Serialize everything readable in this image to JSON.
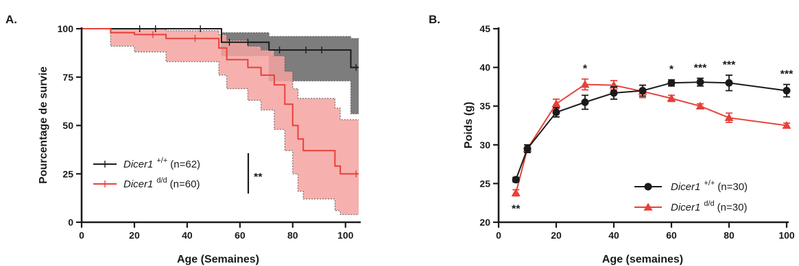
{
  "colors": {
    "black_series": "#1a1a1a",
    "red_series": "#e8403a",
    "red_band": "#f4a3a0",
    "grey_band": "#7d7d7d"
  },
  "chart_data": [
    {
      "panel": "A.",
      "type": "line",
      "subtype": "kaplan-meier survival with confidence bands",
      "xlabel": "Age (Semaines)",
      "ylabel": "Pourcentage de survie",
      "xlim": [
        0,
        105
      ],
      "ylim": [
        0,
        100
      ],
      "xticks": [
        0,
        20,
        40,
        60,
        80,
        100
      ],
      "yticks": [
        0,
        25,
        50,
        75,
        100
      ],
      "grid": false,
      "legend_position": "bottom-left",
      "significance": "**",
      "series": [
        {
          "gene": "Dicer1",
          "genotype": "+/+",
          "n_label": "(n=62)",
          "color": "#1a1a1a",
          "steps": [
            [
              0,
              100
            ],
            [
              53,
              100
            ],
            [
              53,
              93
            ],
            [
              71,
              93
            ],
            [
              71,
              89
            ],
            [
              102,
              89
            ],
            [
              102,
              80
            ],
            [
              105,
              80
            ]
          ],
          "ci_upper": [
            [
              0,
              100
            ],
            [
              53,
              100
            ],
            [
              53,
              98
            ],
            [
              71,
              98
            ],
            [
              71,
              96
            ],
            [
              102,
              96
            ],
            [
              102,
              95
            ],
            [
              105,
              95
            ]
          ],
          "ci_lower": [
            [
              0,
              100
            ],
            [
              53,
              100
            ],
            [
              53,
              86
            ],
            [
              71,
              86
            ],
            [
              71,
              73
            ],
            [
              102,
              73
            ],
            [
              102,
              56
            ],
            [
              105,
              56
            ]
          ],
          "censor_ticks": [
            [
              22,
              100
            ],
            [
              28,
              100
            ],
            [
              45,
              100
            ],
            [
              56,
              93
            ],
            [
              63,
              93
            ],
            [
              75,
              89
            ],
            [
              85,
              89
            ],
            [
              91,
              89
            ],
            [
              104,
              80
            ]
          ]
        },
        {
          "gene": "Dicer1",
          "genotype": "d/d",
          "n_label": "(n=60)",
          "color": "#e8403a",
          "steps": [
            [
              0,
              100
            ],
            [
              11,
              100
            ],
            [
              11,
              98
            ],
            [
              20,
              98
            ],
            [
              20,
              97
            ],
            [
              32,
              97
            ],
            [
              32,
              95
            ],
            [
              52,
              95
            ],
            [
              52,
              90
            ],
            [
              55,
              90
            ],
            [
              55,
              84
            ],
            [
              63,
              84
            ],
            [
              63,
              80
            ],
            [
              68,
              80
            ],
            [
              68,
              76
            ],
            [
              73,
              76
            ],
            [
              73,
              71
            ],
            [
              77,
              71
            ],
            [
              77,
              61
            ],
            [
              80,
              61
            ],
            [
              80,
              50
            ],
            [
              82,
              50
            ],
            [
              82,
              43
            ],
            [
              84,
              43
            ],
            [
              84,
              37
            ],
            [
              96,
              37
            ],
            [
              96,
              29
            ],
            [
              98,
              29
            ],
            [
              98,
              25
            ],
            [
              105,
              25
            ]
          ],
          "ci_upper": [
            [
              0,
              100
            ],
            [
              11,
              100
            ],
            [
              11,
              100
            ],
            [
              32,
              100
            ],
            [
              32,
              99
            ],
            [
              52,
              99
            ],
            [
              52,
              97
            ],
            [
              55,
              97
            ],
            [
              55,
              94
            ],
            [
              63,
              94
            ],
            [
              63,
              91
            ],
            [
              68,
              91
            ],
            [
              68,
              89
            ],
            [
              73,
              89
            ],
            [
              73,
              86
            ],
            [
              77,
              86
            ],
            [
              77,
              78
            ],
            [
              80,
              78
            ],
            [
              80,
              69
            ],
            [
              82,
              69
            ],
            [
              82,
              64
            ],
            [
              96,
              64
            ],
            [
              96,
              59
            ],
            [
              98,
              59
            ],
            [
              98,
              53
            ],
            [
              105,
              53
            ]
          ],
          "ci_lower": [
            [
              0,
              100
            ],
            [
              11,
              100
            ],
            [
              11,
              91
            ],
            [
              20,
              91
            ],
            [
              20,
              88
            ],
            [
              32,
              88
            ],
            [
              32,
              83
            ],
            [
              52,
              83
            ],
            [
              52,
              76
            ],
            [
              55,
              76
            ],
            [
              55,
              69
            ],
            [
              63,
              69
            ],
            [
              63,
              63
            ],
            [
              68,
              63
            ],
            [
              68,
              58
            ],
            [
              73,
              58
            ],
            [
              73,
              48
            ],
            [
              77,
              48
            ],
            [
              77,
              37
            ],
            [
              80,
              37
            ],
            [
              80,
              25
            ],
            [
              82,
              25
            ],
            [
              82,
              16
            ],
            [
              84,
              16
            ],
            [
              84,
              12
            ],
            [
              96,
              12
            ],
            [
              96,
              6
            ],
            [
              98,
              6
            ],
            [
              98,
              4
            ],
            [
              105,
              4
            ]
          ],
          "censor_ticks": [
            [
              27,
              97
            ],
            [
              43,
              95
            ],
            [
              104,
              25
            ]
          ]
        }
      ]
    },
    {
      "panel": "B.",
      "type": "line",
      "subtype": "mean with error bars",
      "xlabel": "Age (semaines)",
      "ylabel": "Poids (g)",
      "xlim": [
        0,
        100
      ],
      "ylim": [
        20,
        45
      ],
      "xticks": [
        0,
        20,
        40,
        60,
        80,
        100
      ],
      "yticks": [
        20,
        25,
        30,
        35,
        40,
        45
      ],
      "grid": false,
      "legend_position": "bottom-right",
      "x": [
        6,
        10,
        20,
        30,
        40,
        50,
        60,
        70,
        80,
        100
      ],
      "series": [
        {
          "gene": "Dicer1",
          "genotype": "+/+",
          "n_label": "(n=30)",
          "color": "#1a1a1a",
          "marker": "circle",
          "values": [
            25.5,
            29.5,
            34.2,
            35.5,
            36.7,
            37.0,
            38.0,
            38.1,
            38.0,
            37.0
          ],
          "errors": [
            0.3,
            0.5,
            0.6,
            0.9,
            0.8,
            0.7,
            0.4,
            0.5,
            1.0,
            0.8
          ]
        },
        {
          "gene": "Dicer1",
          "genotype": "d/d",
          "n_label": "(n=30)",
          "color": "#e8403a",
          "marker": "triangle",
          "values": [
            23.8,
            29.5,
            35.3,
            37.8,
            37.7,
            36.9,
            36.0,
            35.0,
            33.5,
            32.5
          ],
          "errors": [
            0.4,
            0.5,
            0.6,
            0.7,
            0.6,
            0.8,
            0.4,
            0.3,
            0.6,
            0.3
          ]
        }
      ],
      "annotations": [
        {
          "text": "**",
          "x": 6,
          "position": "below"
        },
        {
          "text": "*",
          "x": 30,
          "position": "above"
        },
        {
          "text": "*",
          "x": 60,
          "position": "above"
        },
        {
          "text": "***",
          "x": 70,
          "position": "above"
        },
        {
          "text": "***",
          "x": 80,
          "position": "above"
        },
        {
          "text": "***",
          "x": 100,
          "position": "above"
        }
      ]
    }
  ]
}
